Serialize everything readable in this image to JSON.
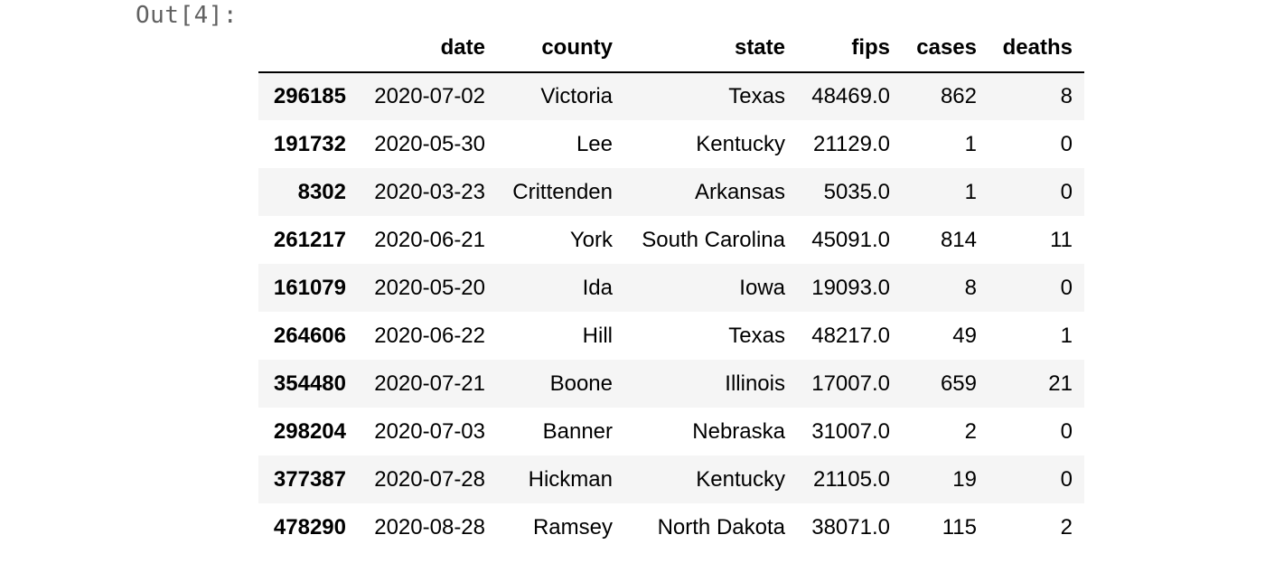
{
  "cell": {
    "out_prompt": "Out[4]:"
  },
  "table": {
    "columns": [
      "",
      "date",
      "county",
      "state",
      "fips",
      "cases",
      "deaths"
    ],
    "rows": [
      [
        "296185",
        "2020-07-02",
        "Victoria",
        "Texas",
        "48469.0",
        "862",
        "8"
      ],
      [
        "191732",
        "2020-05-30",
        "Lee",
        "Kentucky",
        "21129.0",
        "1",
        "0"
      ],
      [
        "8302",
        "2020-03-23",
        "Crittenden",
        "Arkansas",
        "5035.0",
        "1",
        "0"
      ],
      [
        "261217",
        "2020-06-21",
        "York",
        "South Carolina",
        "45091.0",
        "814",
        "11"
      ],
      [
        "161079",
        "2020-05-20",
        "Ida",
        "Iowa",
        "19093.0",
        "8",
        "0"
      ],
      [
        "264606",
        "2020-06-22",
        "Hill",
        "Texas",
        "48217.0",
        "49",
        "1"
      ],
      [
        "354480",
        "2020-07-21",
        "Boone",
        "Illinois",
        "17007.0",
        "659",
        "21"
      ],
      [
        "298204",
        "2020-07-03",
        "Banner",
        "Nebraska",
        "31007.0",
        "2",
        "0"
      ],
      [
        "377387",
        "2020-07-28",
        "Hickman",
        "Kentucky",
        "21105.0",
        "19",
        "0"
      ],
      [
        "478290",
        "2020-08-28",
        "Ramsey",
        "North Dakota",
        "38071.0",
        "115",
        "2"
      ]
    ]
  }
}
